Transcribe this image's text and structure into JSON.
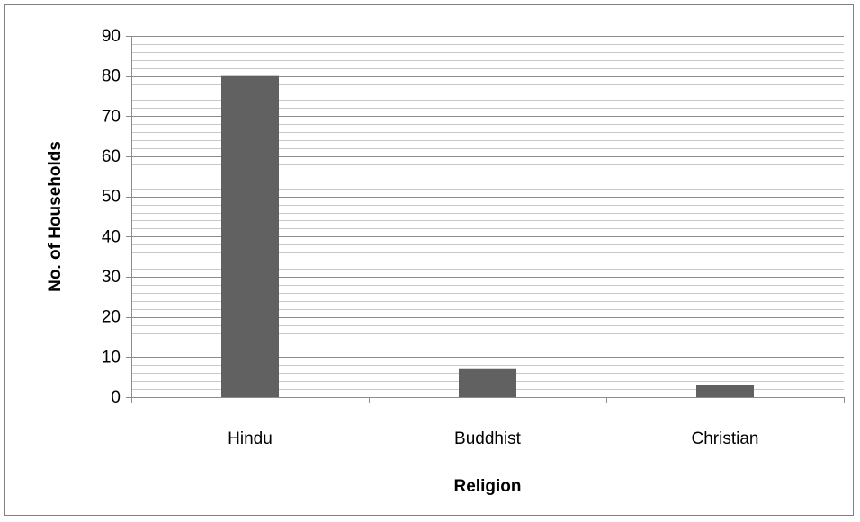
{
  "chart_data": {
    "type": "bar",
    "title": "",
    "xlabel": "Religion",
    "ylabel": "No. of Households",
    "categories": [
      "Hindu",
      "Buddhist",
      "Christian"
    ],
    "values": [
      80,
      7,
      3
    ],
    "ylim": [
      0,
      90
    ],
    "ytick_step": 10,
    "minor_grid_step": 2,
    "grid": true,
    "legend": "none",
    "colors": {
      "bar": "#616161",
      "major_grid": "#8c8c8c",
      "minor_grid": "#c8c8c8",
      "axis": "#8c8c8c",
      "frame": "#7f7f7f"
    }
  }
}
